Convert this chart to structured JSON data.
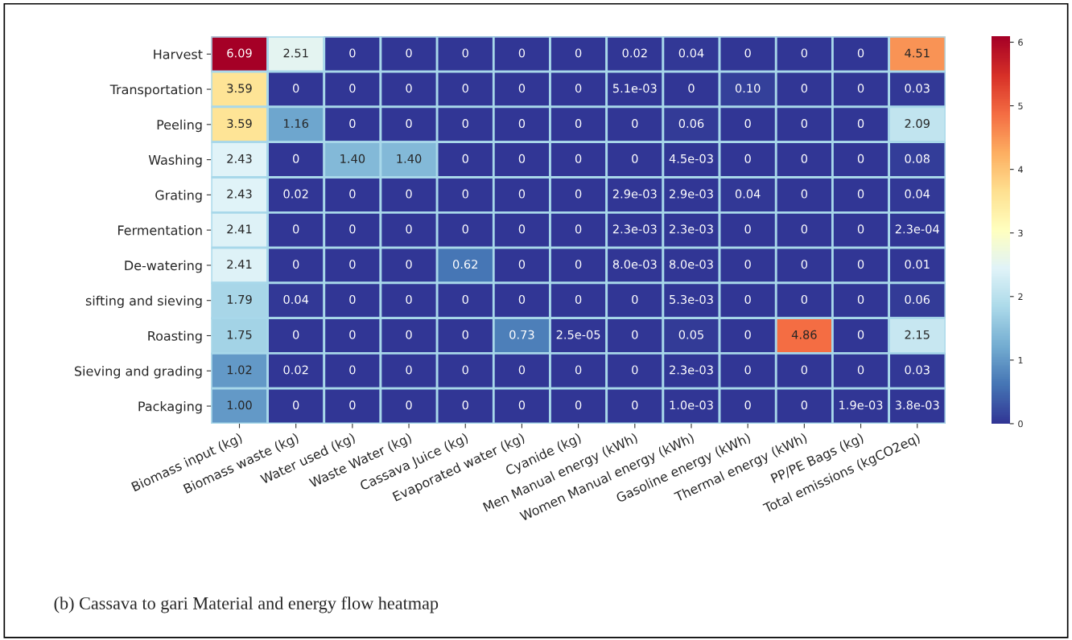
{
  "chart_data": {
    "type": "heatmap",
    "categories": [
      "Biomass input (kg)",
      "Biomass waste (kg)",
      "Water used (kg)",
      "Waste Water (kg)",
      "Cassava Juice (kg)",
      "Evaporated water (kg)",
      "Cyanide (kg)",
      "Men Manual energy (kWh)",
      "Women Manual energy (kWh)",
      "Gasoline energy (kWh)",
      "Thermal energy (kWh)",
      "PP/PE Bags (kg)",
      "Total emissions (kgCO2eq)"
    ],
    "y_categories": [
      "Harvest",
      "Transportation",
      "Peeling",
      "Washing",
      "Grating",
      "Fermentation",
      "De-watering",
      "sifting and sieving",
      "Roasting",
      "Sieving and grading",
      "Packaging"
    ],
    "cells": [
      [
        6.09,
        2.51,
        0,
        0,
        0,
        0,
        0,
        0.02,
        0.04,
        0,
        0,
        0,
        4.51
      ],
      [
        3.59,
        0,
        0,
        0,
        0,
        0,
        0,
        0.0051,
        0,
        0.1,
        0,
        0,
        0.03
      ],
      [
        3.59,
        1.16,
        0,
        0,
        0,
        0,
        0,
        0,
        0.06,
        0,
        0,
        0,
        2.09
      ],
      [
        2.43,
        0,
        1.4,
        1.4,
        0,
        0,
        0,
        0,
        0.0045,
        0,
        0,
        0,
        0.08
      ],
      [
        2.43,
        0.02,
        0,
        0,
        0,
        0,
        0,
        0.0029,
        0.0029,
        0.04,
        0,
        0,
        0.04
      ],
      [
        2.41,
        0,
        0,
        0,
        0,
        0,
        0,
        0.0023,
        0.0023,
        0,
        0,
        0,
        0.00023
      ],
      [
        2.41,
        0,
        0,
        0,
        0.62,
        0,
        0,
        0.008,
        0.008,
        0,
        0,
        0,
        0.01
      ],
      [
        1.79,
        0.04,
        0,
        0,
        0,
        0,
        0,
        0,
        0.0053,
        0,
        0,
        0,
        0.06
      ],
      [
        1.75,
        0,
        0,
        0,
        0,
        0.73,
        2.5e-05,
        0,
        0.05,
        0,
        4.86,
        0,
        2.15
      ],
      [
        1.02,
        0.02,
        0,
        0,
        0,
        0,
        0,
        0,
        0.0023,
        0,
        0,
        0,
        0.03
      ],
      [
        1.0,
        0,
        0,
        0,
        0,
        0,
        0,
        0,
        0.001,
        0,
        0,
        0.0019,
        0.0038
      ]
    ],
    "cell_labels": [
      [
        "6.09",
        "2.51",
        "0",
        "0",
        "0",
        "0",
        "0",
        "0.02",
        "0.04",
        "0",
        "0",
        "0",
        "4.51"
      ],
      [
        "3.59",
        "0",
        "0",
        "0",
        "0",
        "0",
        "0",
        "5.1e-03",
        "0",
        "0.10",
        "0",
        "0",
        "0.03"
      ],
      [
        "3.59",
        "1.16",
        "0",
        "0",
        "0",
        "0",
        "0",
        "0",
        "0.06",
        "0",
        "0",
        "0",
        "2.09"
      ],
      [
        "2.43",
        "0",
        "1.40",
        "1.40",
        "0",
        "0",
        "0",
        "0",
        "4.5e-03",
        "0",
        "0",
        "0",
        "0.08"
      ],
      [
        "2.43",
        "0.02",
        "0",
        "0",
        "0",
        "0",
        "0",
        "2.9e-03",
        "2.9e-03",
        "0.04",
        "0",
        "0",
        "0.04"
      ],
      [
        "2.41",
        "0",
        "0",
        "0",
        "0",
        "0",
        "0",
        "2.3e-03",
        "2.3e-03",
        "0",
        "0",
        "0",
        "2.3e-04"
      ],
      [
        "2.41",
        "0",
        "0",
        "0",
        "0.62",
        "0",
        "0",
        "8.0e-03",
        "8.0e-03",
        "0",
        "0",
        "0",
        "0.01"
      ],
      [
        "1.79",
        "0.04",
        "0",
        "0",
        "0",
        "0",
        "0",
        "0",
        "5.3e-03",
        "0",
        "0",
        "0",
        "0.06"
      ],
      [
        "1.75",
        "0",
        "0",
        "0",
        "0",
        "0.73",
        "2.5e-05",
        "0",
        "0.05",
        "0",
        "4.86",
        "0",
        "2.15"
      ],
      [
        "1.02",
        "0.02",
        "0",
        "0",
        "0",
        "0",
        "0",
        "0",
        "2.3e-03",
        "0",
        "0",
        "0",
        "0.03"
      ],
      [
        "1.00",
        "0",
        "0",
        "0",
        "0",
        "0",
        "0",
        "0",
        "1.0e-03",
        "0",
        "0",
        "1.9e-03",
        "3.8e-03"
      ]
    ],
    "clim": [
      0,
      6.09
    ],
    "cticks": [
      0,
      1,
      2,
      3,
      4,
      5,
      6
    ],
    "annotations": [
      "(b) Cassava to gari Material and energy flow heatmap"
    ]
  }
}
